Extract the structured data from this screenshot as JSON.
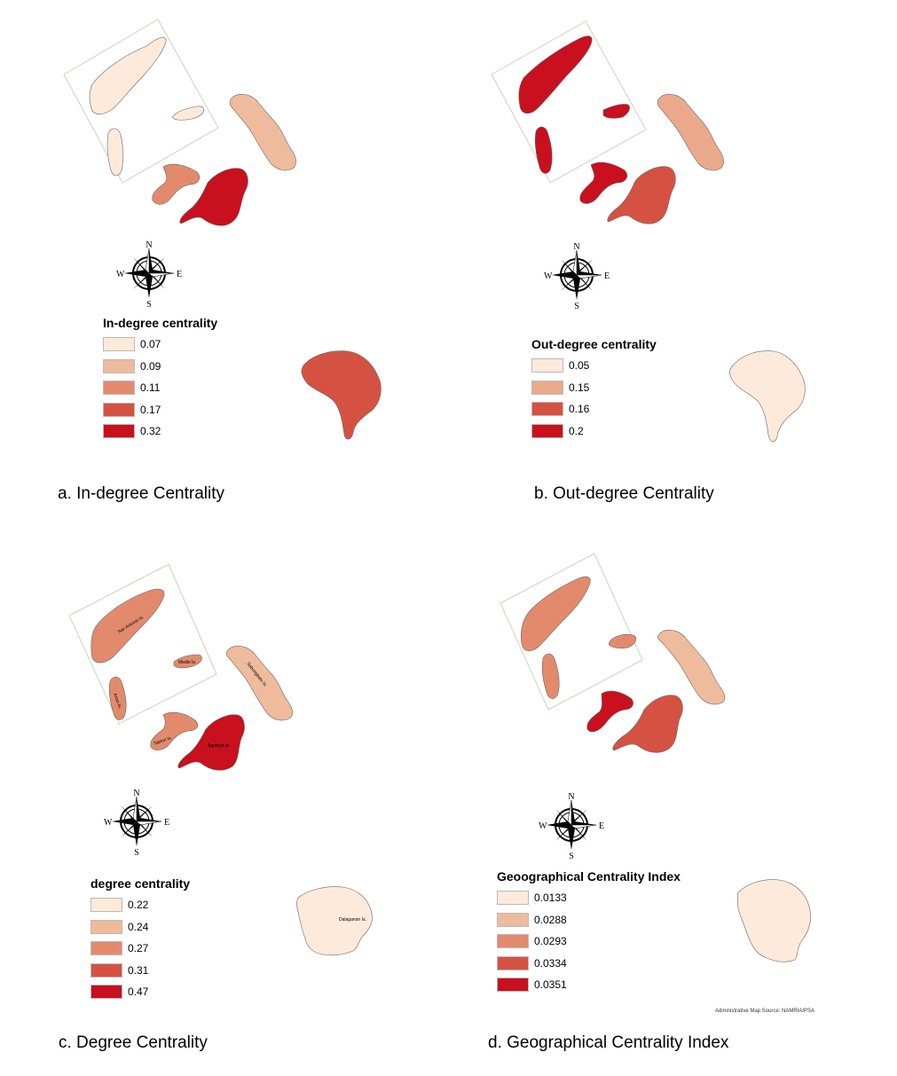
{
  "colors": {
    "c1": "#fdeadb",
    "c2": "#eebb9d",
    "c3": "#e38a6d",
    "c4": "#d55243",
    "c5": "#c8101e",
    "outline": "#666666",
    "frame": "#c9d6b8"
  },
  "compass": {
    "n": "N",
    "s": "S",
    "e": "E",
    "w": "W"
  },
  "source_note": "Administrative Map Source: NAMRIA/PSA",
  "panels": [
    {
      "id": "a",
      "caption": "a. In-degree Centrality",
      "legend": {
        "title": "In-degree centrality",
        "items": [
          {
            "label": "0.07",
            "color": "#fdeadb"
          },
          {
            "label": "0.09",
            "color": "#eebb9d"
          },
          {
            "label": "0.11",
            "color": "#e38a6d"
          },
          {
            "label": "0.17",
            "color": "#d55243"
          },
          {
            "label": "0.32",
            "color": "#c8101e"
          }
        ]
      },
      "island_colors": {
        "north_long": "#fdeadb",
        "north_small": "#fdeadb",
        "north_west": "#fdeadb",
        "east_long": "#eebb9d",
        "mid_west": "#e38a6d",
        "mid_big": "#c8101e",
        "south": "#d55243"
      }
    },
    {
      "id": "b",
      "caption": "b. Out-degree Centrality",
      "legend": {
        "title": "Out-degree centrality",
        "items": [
          {
            "label": "0.05",
            "color": "#fdeadb"
          },
          {
            "label": "0.15",
            "color": "#eaa98b"
          },
          {
            "label": "0.16",
            "color": "#d55243"
          },
          {
            "label": "0.2",
            "color": "#c8101e"
          }
        ]
      },
      "island_colors": {
        "north_long": "#c8101e",
        "north_small": "#c8101e",
        "north_west": "#c8101e",
        "east_long": "#eaa98b",
        "mid_west": "#c8101e",
        "mid_big": "#d55243",
        "south": "#fdeadb"
      }
    },
    {
      "id": "c",
      "caption": "c. Degree Centrality",
      "legend": {
        "title": "degree centrality",
        "items": [
          {
            "label": "0.22",
            "color": "#fdeadb"
          },
          {
            "label": "0.24",
            "color": "#eebb9d"
          },
          {
            "label": "0.27",
            "color": "#e38a6d"
          },
          {
            "label": "0.31",
            "color": "#d55243"
          },
          {
            "label": "0.47",
            "color": "#c8101e"
          }
        ]
      },
      "island_colors": {
        "north_long": "#e38a6d",
        "north_small": "#e38a6d",
        "north_west": "#e38a6d",
        "east_long": "#eebb9d",
        "mid_west": "#e38a6d",
        "mid_big": "#c8101e",
        "south": "#fdeadb"
      },
      "island_labels": {
        "north_long": "San Antonio Is.",
        "north_small": "Medio Is.",
        "north_west": "Anao Is.",
        "east_long": "Sabongbato Is.",
        "mid_west": "Tablon Is.",
        "mid_big": "Agutaya Is.",
        "south": "Dalaganon Is."
      }
    },
    {
      "id": "d",
      "caption": "d. Geographical Centrality Index",
      "legend": {
        "title": "Geoographical Centrality Index",
        "items": [
          {
            "label": "0.0133",
            "color": "#fdeadb"
          },
          {
            "label": "0.0288",
            "color": "#eebb9d"
          },
          {
            "label": "0.0293",
            "color": "#e38a6d"
          },
          {
            "label": "0.0334",
            "color": "#d55243"
          },
          {
            "label": "0.0351",
            "color": "#c8101e"
          }
        ]
      },
      "island_colors": {
        "north_long": "#e38a6d",
        "north_small": "#e38a6d",
        "north_west": "#e38a6d",
        "east_long": "#eebb9d",
        "mid_west": "#c8101e",
        "mid_big": "#d55243",
        "south": "#fdeadb"
      }
    }
  ]
}
